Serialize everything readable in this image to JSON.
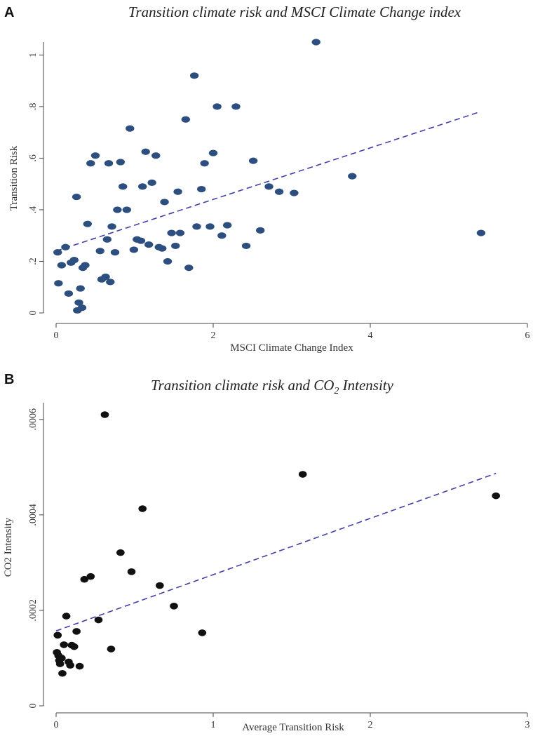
{
  "chart_data": [
    {
      "panel": "A",
      "type": "scatter",
      "title": "Transition climate risk and MSCI Climate Change index",
      "xlabel": "MSCI Climate Change Index",
      "ylabel": "Transition Risk",
      "xlim": [
        0,
        6
      ],
      "ylim": [
        0,
        1.05
      ],
      "xticks": [
        0,
        2,
        4,
        6
      ],
      "xtick_labels": [
        "0",
        "2",
        "4",
        "6"
      ],
      "yticks": [
        0,
        0.2,
        0.4,
        0.6,
        0.8,
        1
      ],
      "ytick_labels": [
        "0",
        ".2",
        ".4",
        ".6",
        ".8",
        "1"
      ],
      "marker_color": "#2d4f80",
      "fit_color": "#3f3fa8",
      "fit_line": {
        "x": [
          0.0,
          5.4
        ],
        "y": [
          0.24,
          0.78
        ]
      },
      "points": [
        {
          "x": 0.02,
          "y": 0.235
        },
        {
          "x": 0.03,
          "y": 0.115
        },
        {
          "x": 0.07,
          "y": 0.185
        },
        {
          "x": 0.12,
          "y": 0.255
        },
        {
          "x": 0.16,
          "y": 0.075
        },
        {
          "x": 0.19,
          "y": 0.195
        },
        {
          "x": 0.23,
          "y": 0.205
        },
        {
          "x": 0.26,
          "y": 0.45
        },
        {
          "x": 0.27,
          "y": 0.01
        },
        {
          "x": 0.29,
          "y": 0.04
        },
        {
          "x": 0.31,
          "y": 0.095
        },
        {
          "x": 0.33,
          "y": 0.02
        },
        {
          "x": 0.34,
          "y": 0.175
        },
        {
          "x": 0.37,
          "y": 0.185
        },
        {
          "x": 0.4,
          "y": 0.345
        },
        {
          "x": 0.44,
          "y": 0.58
        },
        {
          "x": 0.5,
          "y": 0.61
        },
        {
          "x": 0.56,
          "y": 0.24
        },
        {
          "x": 0.58,
          "y": 0.13
        },
        {
          "x": 0.63,
          "y": 0.14
        },
        {
          "x": 0.65,
          "y": 0.285
        },
        {
          "x": 0.67,
          "y": 0.58
        },
        {
          "x": 0.69,
          "y": 0.12
        },
        {
          "x": 0.71,
          "y": 0.335
        },
        {
          "x": 0.75,
          "y": 0.235
        },
        {
          "x": 0.78,
          "y": 0.4
        },
        {
          "x": 0.82,
          "y": 0.585
        },
        {
          "x": 0.85,
          "y": 0.49
        },
        {
          "x": 0.9,
          "y": 0.4
        },
        {
          "x": 0.94,
          "y": 0.715
        },
        {
          "x": 0.99,
          "y": 0.245
        },
        {
          "x": 1.03,
          "y": 0.285
        },
        {
          "x": 1.08,
          "y": 0.28
        },
        {
          "x": 1.1,
          "y": 0.49
        },
        {
          "x": 1.14,
          "y": 0.625
        },
        {
          "x": 1.18,
          "y": 0.265
        },
        {
          "x": 1.22,
          "y": 0.505
        },
        {
          "x": 1.27,
          "y": 0.61
        },
        {
          "x": 1.31,
          "y": 0.255
        },
        {
          "x": 1.35,
          "y": 0.25
        },
        {
          "x": 1.38,
          "y": 0.43
        },
        {
          "x": 1.42,
          "y": 0.2
        },
        {
          "x": 1.47,
          "y": 0.31
        },
        {
          "x": 1.52,
          "y": 0.26
        },
        {
          "x": 1.55,
          "y": 0.47
        },
        {
          "x": 1.58,
          "y": 0.31
        },
        {
          "x": 1.65,
          "y": 0.75
        },
        {
          "x": 1.69,
          "y": 0.175
        },
        {
          "x": 1.76,
          "y": 0.92
        },
        {
          "x": 1.79,
          "y": 0.335
        },
        {
          "x": 1.85,
          "y": 0.48
        },
        {
          "x": 1.89,
          "y": 0.58
        },
        {
          "x": 1.96,
          "y": 0.335
        },
        {
          "x": 2.0,
          "y": 0.62
        },
        {
          "x": 2.05,
          "y": 0.8
        },
        {
          "x": 2.11,
          "y": 0.3
        },
        {
          "x": 2.18,
          "y": 0.34
        },
        {
          "x": 2.29,
          "y": 0.8
        },
        {
          "x": 2.42,
          "y": 0.26
        },
        {
          "x": 2.51,
          "y": 0.59
        },
        {
          "x": 2.6,
          "y": 0.32
        },
        {
          "x": 2.71,
          "y": 0.49
        },
        {
          "x": 2.84,
          "y": 0.47
        },
        {
          "x": 3.03,
          "y": 0.465
        },
        {
          "x": 3.31,
          "y": 1.05
        },
        {
          "x": 3.77,
          "y": 0.53
        },
        {
          "x": 5.41,
          "y": 0.31
        }
      ]
    },
    {
      "panel": "B",
      "type": "scatter",
      "title": "Transition climate risk and CO",
      "title_subscript": "2",
      "title_suffix": " Intensity",
      "xlabel": "Average Transition Risk",
      "ylabel": "CO2 Intensity",
      "xlim": [
        0,
        3
      ],
      "ylim": [
        0,
        0.00061
      ],
      "xticks": [
        0,
        1,
        2,
        3
      ],
      "xtick_labels": [
        "0",
        "1",
        "2",
        "3"
      ],
      "yticks": [
        0,
        0.0002,
        0.0004,
        0.0006
      ],
      "ytick_labels": [
        "0",
        ".0002",
        ".0004",
        ".0006"
      ],
      "marker_color": "#111111",
      "fit_color": "#3f3fa8",
      "fit_line": {
        "x": [
          0.0,
          2.8
        ],
        "y": [
          0.000157,
          0.000487
        ]
      },
      "points": [
        {
          "x": 0.005,
          "y": 0.000112
        },
        {
          "x": 0.01,
          "y": 0.000148
        },
        {
          "x": 0.015,
          "y": 0.000105
        },
        {
          "x": 0.02,
          "y": 9.5e-05
        },
        {
          "x": 0.025,
          "y": 8.8e-05
        },
        {
          "x": 0.035,
          "y": 0.0001
        },
        {
          "x": 0.04,
          "y": 6.8e-05
        },
        {
          "x": 0.05,
          "y": 0.000128
        },
        {
          "x": 0.065,
          "y": 0.000188
        },
        {
          "x": 0.08,
          "y": 9.2e-05
        },
        {
          "x": 0.09,
          "y": 8.5e-05
        },
        {
          "x": 0.1,
          "y": 0.000127
        },
        {
          "x": 0.115,
          "y": 0.000124
        },
        {
          "x": 0.13,
          "y": 0.000156
        },
        {
          "x": 0.15,
          "y": 8.3e-05
        },
        {
          "x": 0.18,
          "y": 0.000265
        },
        {
          "x": 0.22,
          "y": 0.000271
        },
        {
          "x": 0.27,
          "y": 0.00018
        },
        {
          "x": 0.31,
          "y": 0.00061
        },
        {
          "x": 0.35,
          "y": 0.000119
        },
        {
          "x": 0.41,
          "y": 0.000321
        },
        {
          "x": 0.48,
          "y": 0.000281
        },
        {
          "x": 0.55,
          "y": 0.000413
        },
        {
          "x": 0.66,
          "y": 0.000252
        },
        {
          "x": 0.75,
          "y": 0.000209
        },
        {
          "x": 0.93,
          "y": 0.000153
        },
        {
          "x": 1.57,
          "y": 0.000485
        },
        {
          "x": 2.8,
          "y": 0.00044
        }
      ]
    }
  ]
}
